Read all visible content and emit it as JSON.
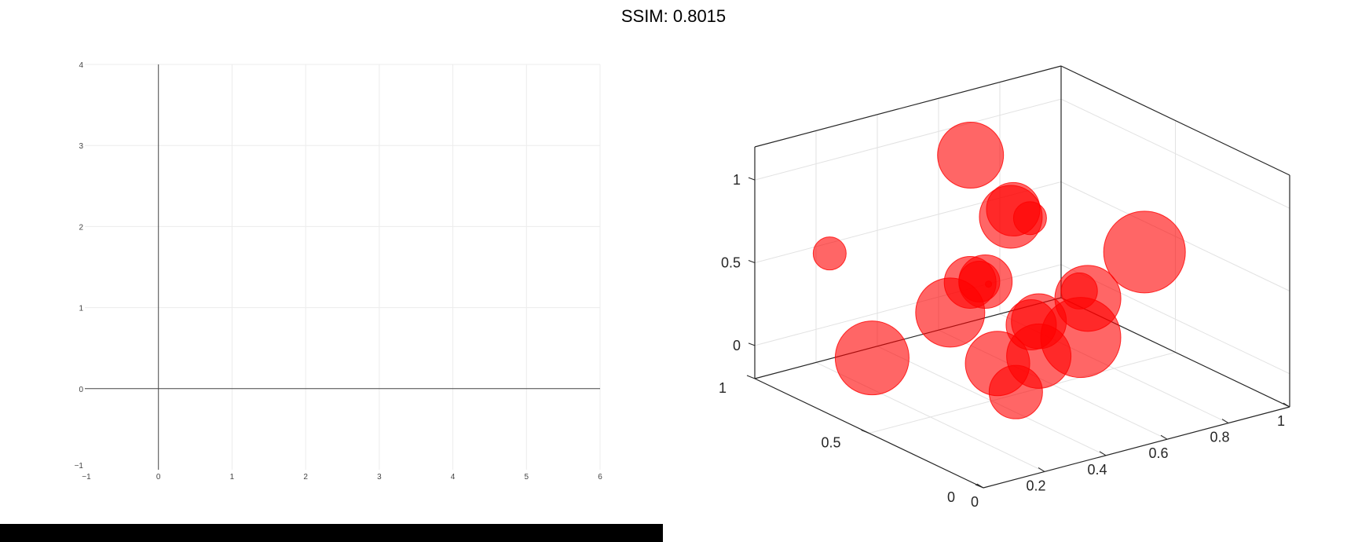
{
  "figure_title": "SSIM: 0.8015",
  "chart_data": [
    {
      "type": "line",
      "xlim": [
        -1,
        6
      ],
      "ylim": [
        -1,
        4
      ],
      "x_ticks": [
        "−1",
        "0",
        "1",
        "2",
        "3",
        "4",
        "5",
        "6"
      ],
      "y_ticks": [
        "−1",
        "0",
        "1",
        "2",
        "3",
        "4"
      ],
      "series": [],
      "grid": true,
      "zero_lines": true
    },
    {
      "type": "scatter",
      "projection": "3d",
      "xlim": [
        0,
        1
      ],
      "ylim": [
        0,
        1
      ],
      "zlim": [
        -0.2,
        1.2
      ],
      "x_ticks": [
        "0",
        "0.2",
        "0.4",
        "0.6",
        "0.8",
        "1"
      ],
      "y_ticks": [
        "0",
        "0.5",
        "1"
      ],
      "z_ticks": [
        "0",
        "0.5",
        "1"
      ],
      "marker_color": "#ff0000",
      "marker_alpha": 0.6,
      "grid": true,
      "points": [
        {
          "x": 0.01,
          "y": 0.5,
          "z": 0.25,
          "size": 47
        },
        {
          "x": 0.14,
          "y": 0.86,
          "z": 0.58,
          "size": 21
        },
        {
          "x": 0.25,
          "y": 0.48,
          "z": 0.42,
          "size": 44
        },
        {
          "x": 0.33,
          "y": 0.5,
          "z": 0.55,
          "size": 33
        },
        {
          "x": 0.36,
          "y": 0.5,
          "z": 0.54,
          "size": 26
        },
        {
          "x": 0.38,
          "y": 0.5,
          "z": 0.53,
          "size": 34
        },
        {
          "x": 0.39,
          "y": 0.5,
          "z": 0.51,
          "size": 4
        },
        {
          "x": 0.57,
          "y": 0.82,
          "z": 0.99,
          "size": 42
        },
        {
          "x": 0.5,
          "y": 0.55,
          "z": 0.83,
          "size": 40
        },
        {
          "x": 0.56,
          "y": 0.62,
          "z": 0.8,
          "size": 34
        },
        {
          "x": 0.6,
          "y": 0.6,
          "z": 0.74,
          "size": 21
        },
        {
          "x": 0.5,
          "y": 0.25,
          "z": 0.58,
          "size": 23
        },
        {
          "x": 0.42,
          "y": 0.32,
          "z": 0.39,
          "size": 35
        },
        {
          "x": 0.41,
          "y": 0.34,
          "z": 0.36,
          "size": 32
        },
        {
          "x": 0.3,
          "y": 0.34,
          "z": 0.18,
          "size": 41
        },
        {
          "x": 0.4,
          "y": 0.11,
          "z": 0.44,
          "size": 51
        },
        {
          "x": 0.58,
          "y": 0.32,
          "z": 0.45,
          "size": 42
        },
        {
          "x": 0.75,
          "y": 0.3,
          "z": 0.66,
          "size": 52
        },
        {
          "x": 0.39,
          "y": 0.28,
          "z": 0.22,
          "size": 41
        },
        {
          "x": 0.3,
          "y": 0.26,
          "z": 0.06,
          "size": 34
        }
      ]
    }
  ]
}
